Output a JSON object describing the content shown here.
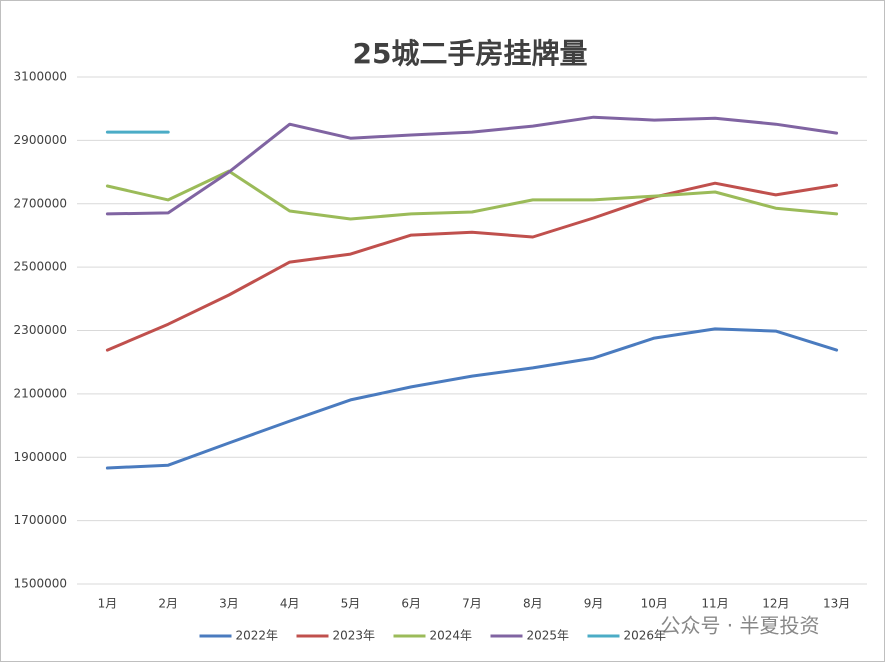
{
  "chart_data": {
    "type": "line",
    "title": "25城二手房挂牌量",
    "categories": [
      "1月",
      "2月",
      "3月",
      "4月",
      "5月",
      "6月",
      "7月",
      "8月",
      "9月",
      "10月",
      "11月",
      "12月",
      "13月"
    ],
    "series": [
      {
        "name": "2022年",
        "color": "#4a7bbf",
        "values": [
          1866000,
          1875000,
          1945000,
          2014000,
          2081000,
          2122000,
          2156000,
          2182000,
          2213000,
          2276000,
          2305000,
          2298000,
          2238000
        ]
      },
      {
        "name": "2023年",
        "color": "#c0504d",
        "values": [
          2238000,
          2320000,
          2412000,
          2516000,
          2541000,
          2601000,
          2610000,
          2595000,
          2655000,
          2721000,
          2765000,
          2728000,
          2759000
        ]
      },
      {
        "name": "2024年",
        "color": "#9bbb59",
        "values": [
          2756000,
          2712000,
          2803000,
          2677000,
          2652000,
          2668000,
          2674000,
          2712000,
          2712000,
          2724000,
          2737000,
          2686000,
          2668000
        ]
      },
      {
        "name": "2025年",
        "color": "#8064a2",
        "values": [
          2668000,
          2671000,
          2800000,
          2951000,
          2907000,
          2917000,
          2926000,
          2945000,
          2973000,
          2964000,
          2970000,
          2951000,
          2923000
        ]
      },
      {
        "name": "2026年",
        "color": "#4bacc6",
        "values": [
          2926000,
          2926000,
          null,
          null,
          null,
          null,
          null,
          null,
          null,
          null,
          null,
          null,
          null
        ]
      }
    ],
    "ylim": [
      1500000,
      3100000
    ],
    "yticks": [
      1500000,
      1700000,
      1900000,
      2100000,
      2300000,
      2500000,
      2700000,
      2900000,
      3100000
    ],
    "grid": true,
    "legend": "bottom",
    "watermark": "公众号 · 半夏投资"
  }
}
